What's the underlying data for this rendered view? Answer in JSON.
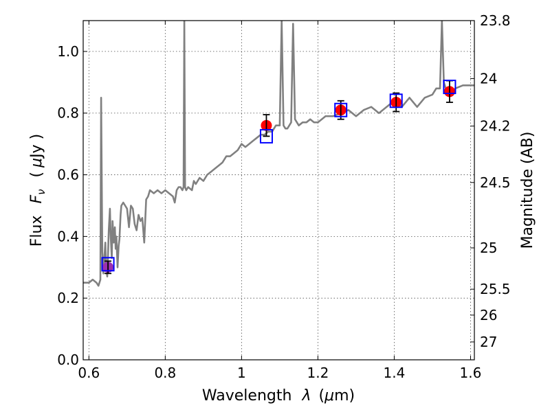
{
  "chart_data": {
    "type": "line",
    "xlabel_main": "Wavelength",
    "xlabel_symbol": "λ",
    "xlabel_unit_open": "(",
    "xlabel_unit_mu": "μ",
    "xlabel_unit_rest": "m)",
    "ylabel_main": "Flux",
    "ylabel_symbol": "F",
    "ylabel_subscript": "ν",
    "ylabel_unit_open": "(",
    "ylabel_unit_mu": "μ",
    "ylabel_unit_rest": "Jy )",
    "y2label": "Magnitude (AB)",
    "xlim": [
      0.585,
      1.61
    ],
    "ylim": [
      0.0,
      1.1
    ],
    "grid": true,
    "x_ticks": [
      {
        "value": 0.6,
        "label": "0.6"
      },
      {
        "value": 0.8,
        "label": "0.8"
      },
      {
        "value": 1.0,
        "label": "1"
      },
      {
        "value": 1.2,
        "label": "1.2"
      },
      {
        "value": 1.4,
        "label": "1.4"
      },
      {
        "value": 1.6,
        "label": "1.6"
      }
    ],
    "y_ticks": [
      {
        "value": 0.0,
        "label": "0.0"
      },
      {
        "value": 0.2,
        "label": "0.2"
      },
      {
        "value": 0.4,
        "label": "0.4"
      },
      {
        "value": 0.6,
        "label": "0.6"
      },
      {
        "value": 0.8,
        "label": "0.8"
      },
      {
        "value": 1.0,
        "label": "1.0"
      }
    ],
    "y2_ticks": [
      {
        "flux": 1.1,
        "label": "23.8"
      },
      {
        "flux": 0.912,
        "label": "24"
      },
      {
        "flux": 0.758,
        "label": "24.2"
      },
      {
        "flux": 0.575,
        "label": "24.5"
      },
      {
        "flux": 0.363,
        "label": "25"
      },
      {
        "flux": 0.229,
        "label": "25.5"
      },
      {
        "flux": 0.145,
        "label": "26"
      },
      {
        "flux": 0.058,
        "label": "27"
      }
    ],
    "series": [
      {
        "style": "model-spectrum",
        "color": "#808080",
        "x": [
          0.585,
          0.6,
          0.61,
          0.62,
          0.625,
          0.63,
          0.632,
          0.635,
          0.638,
          0.64,
          0.643,
          0.645,
          0.648,
          0.65,
          0.652,
          0.655,
          0.657,
          0.66,
          0.662,
          0.665,
          0.668,
          0.67,
          0.672,
          0.675,
          0.678,
          0.68,
          0.683,
          0.685,
          0.69,
          0.695,
          0.7,
          0.705,
          0.71,
          0.715,
          0.72,
          0.725,
          0.73,
          0.735,
          0.74,
          0.745,
          0.75,
          0.755,
          0.76,
          0.77,
          0.78,
          0.79,
          0.8,
          0.81,
          0.82,
          0.825,
          0.83,
          0.835,
          0.84,
          0.845,
          0.848,
          0.85,
          0.852,
          0.855,
          0.86,
          0.87,
          0.875,
          0.88,
          0.89,
          0.9,
          0.91,
          0.92,
          0.93,
          0.94,
          0.95,
          0.96,
          0.97,
          0.98,
          0.99,
          1.0,
          1.01,
          1.02,
          1.03,
          1.04,
          1.05,
          1.06,
          1.07,
          1.08,
          1.09,
          1.1,
          1.105,
          1.11,
          1.115,
          1.12,
          1.125,
          1.13,
          1.135,
          1.14,
          1.15,
          1.16,
          1.17,
          1.18,
          1.19,
          1.2,
          1.22,
          1.24,
          1.26,
          1.28,
          1.3,
          1.32,
          1.34,
          1.36,
          1.38,
          1.4,
          1.42,
          1.44,
          1.46,
          1.48,
          1.5,
          1.51,
          1.52,
          1.525,
          1.53,
          1.535,
          1.54,
          1.55,
          1.56,
          1.58,
          1.6,
          1.61
        ],
        "y": [
          0.25,
          0.25,
          0.26,
          0.25,
          0.24,
          0.26,
          0.85,
          0.35,
          0.28,
          0.32,
          0.38,
          0.3,
          0.27,
          0.34,
          0.42,
          0.49,
          0.4,
          0.33,
          0.45,
          0.38,
          0.43,
          0.36,
          0.4,
          0.3,
          0.37,
          0.39,
          0.47,
          0.5,
          0.51,
          0.5,
          0.49,
          0.43,
          0.5,
          0.49,
          0.44,
          0.42,
          0.47,
          0.45,
          0.46,
          0.38,
          0.52,
          0.53,
          0.55,
          0.54,
          0.55,
          0.54,
          0.55,
          0.54,
          0.53,
          0.51,
          0.55,
          0.56,
          0.56,
          0.55,
          0.56,
          1.1,
          0.56,
          0.55,
          0.56,
          0.55,
          0.58,
          0.57,
          0.59,
          0.58,
          0.6,
          0.61,
          0.62,
          0.63,
          0.64,
          0.66,
          0.66,
          0.67,
          0.68,
          0.7,
          0.69,
          0.7,
          0.71,
          0.72,
          0.73,
          0.73,
          0.74,
          0.74,
          0.76,
          0.76,
          1.1,
          0.76,
          0.75,
          0.75,
          0.76,
          0.77,
          1.09,
          0.78,
          0.76,
          0.77,
          0.77,
          0.78,
          0.77,
          0.77,
          0.79,
          0.79,
          0.8,
          0.81,
          0.79,
          0.81,
          0.82,
          0.8,
          0.82,
          0.84,
          0.82,
          0.85,
          0.82,
          0.85,
          0.86,
          0.88,
          0.88,
          1.1,
          0.9,
          0.88,
          0.87,
          0.86,
          0.88,
          0.89,
          0.89,
          0.89
        ]
      },
      {
        "style": "model-photometry",
        "color": "#0000ff",
        "x": [
          0.65,
          1.065,
          1.26,
          1.405,
          1.545
        ],
        "y": [
          0.31,
          0.725,
          0.81,
          0.84,
          0.885
        ]
      },
      {
        "style": "observed-photometry",
        "color": "#ff0000",
        "color_first": "#9b30b0",
        "x": [
          0.65,
          1.065,
          1.26,
          1.405,
          1.545
        ],
        "y": [
          0.3,
          0.76,
          0.81,
          0.835,
          0.87
        ],
        "yerr": [
          0.02,
          0.035,
          0.03,
          0.03,
          0.035
        ]
      }
    ]
  }
}
